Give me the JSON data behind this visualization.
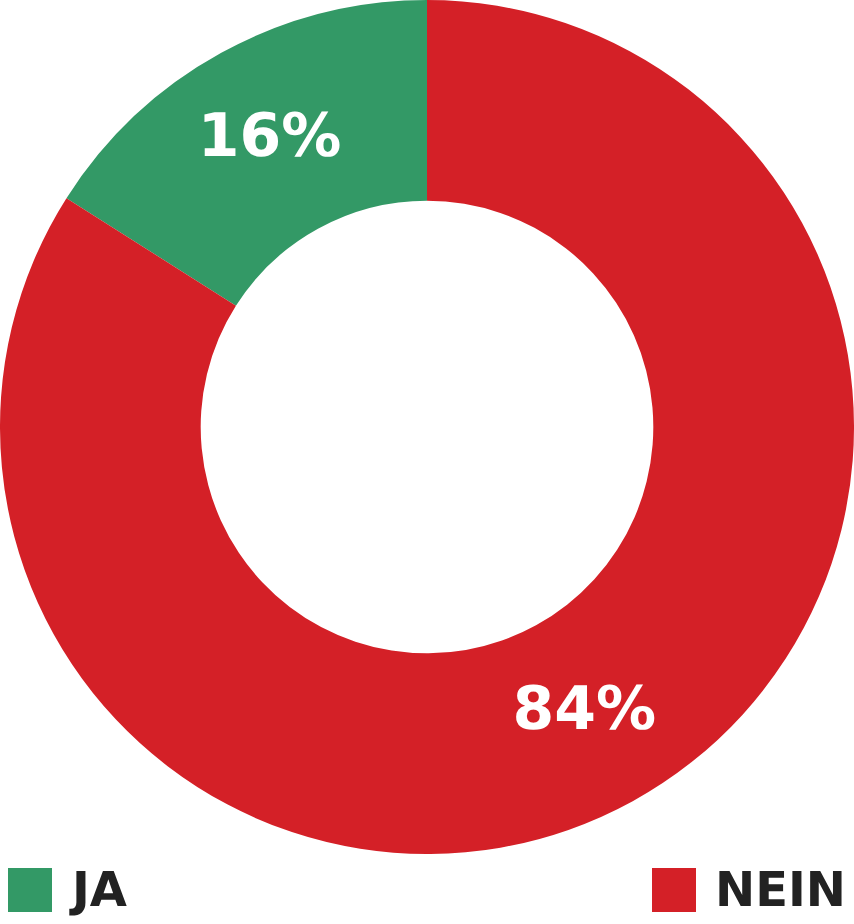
{
  "chart_data": {
    "type": "donut",
    "categories": [
      "JA",
      "NEIN"
    ],
    "values": [
      16,
      84
    ],
    "colors": [
      "#339966",
      "#d42027"
    ],
    "value_labels": [
      "16%",
      "84%"
    ],
    "legend": "bottom"
  }
}
